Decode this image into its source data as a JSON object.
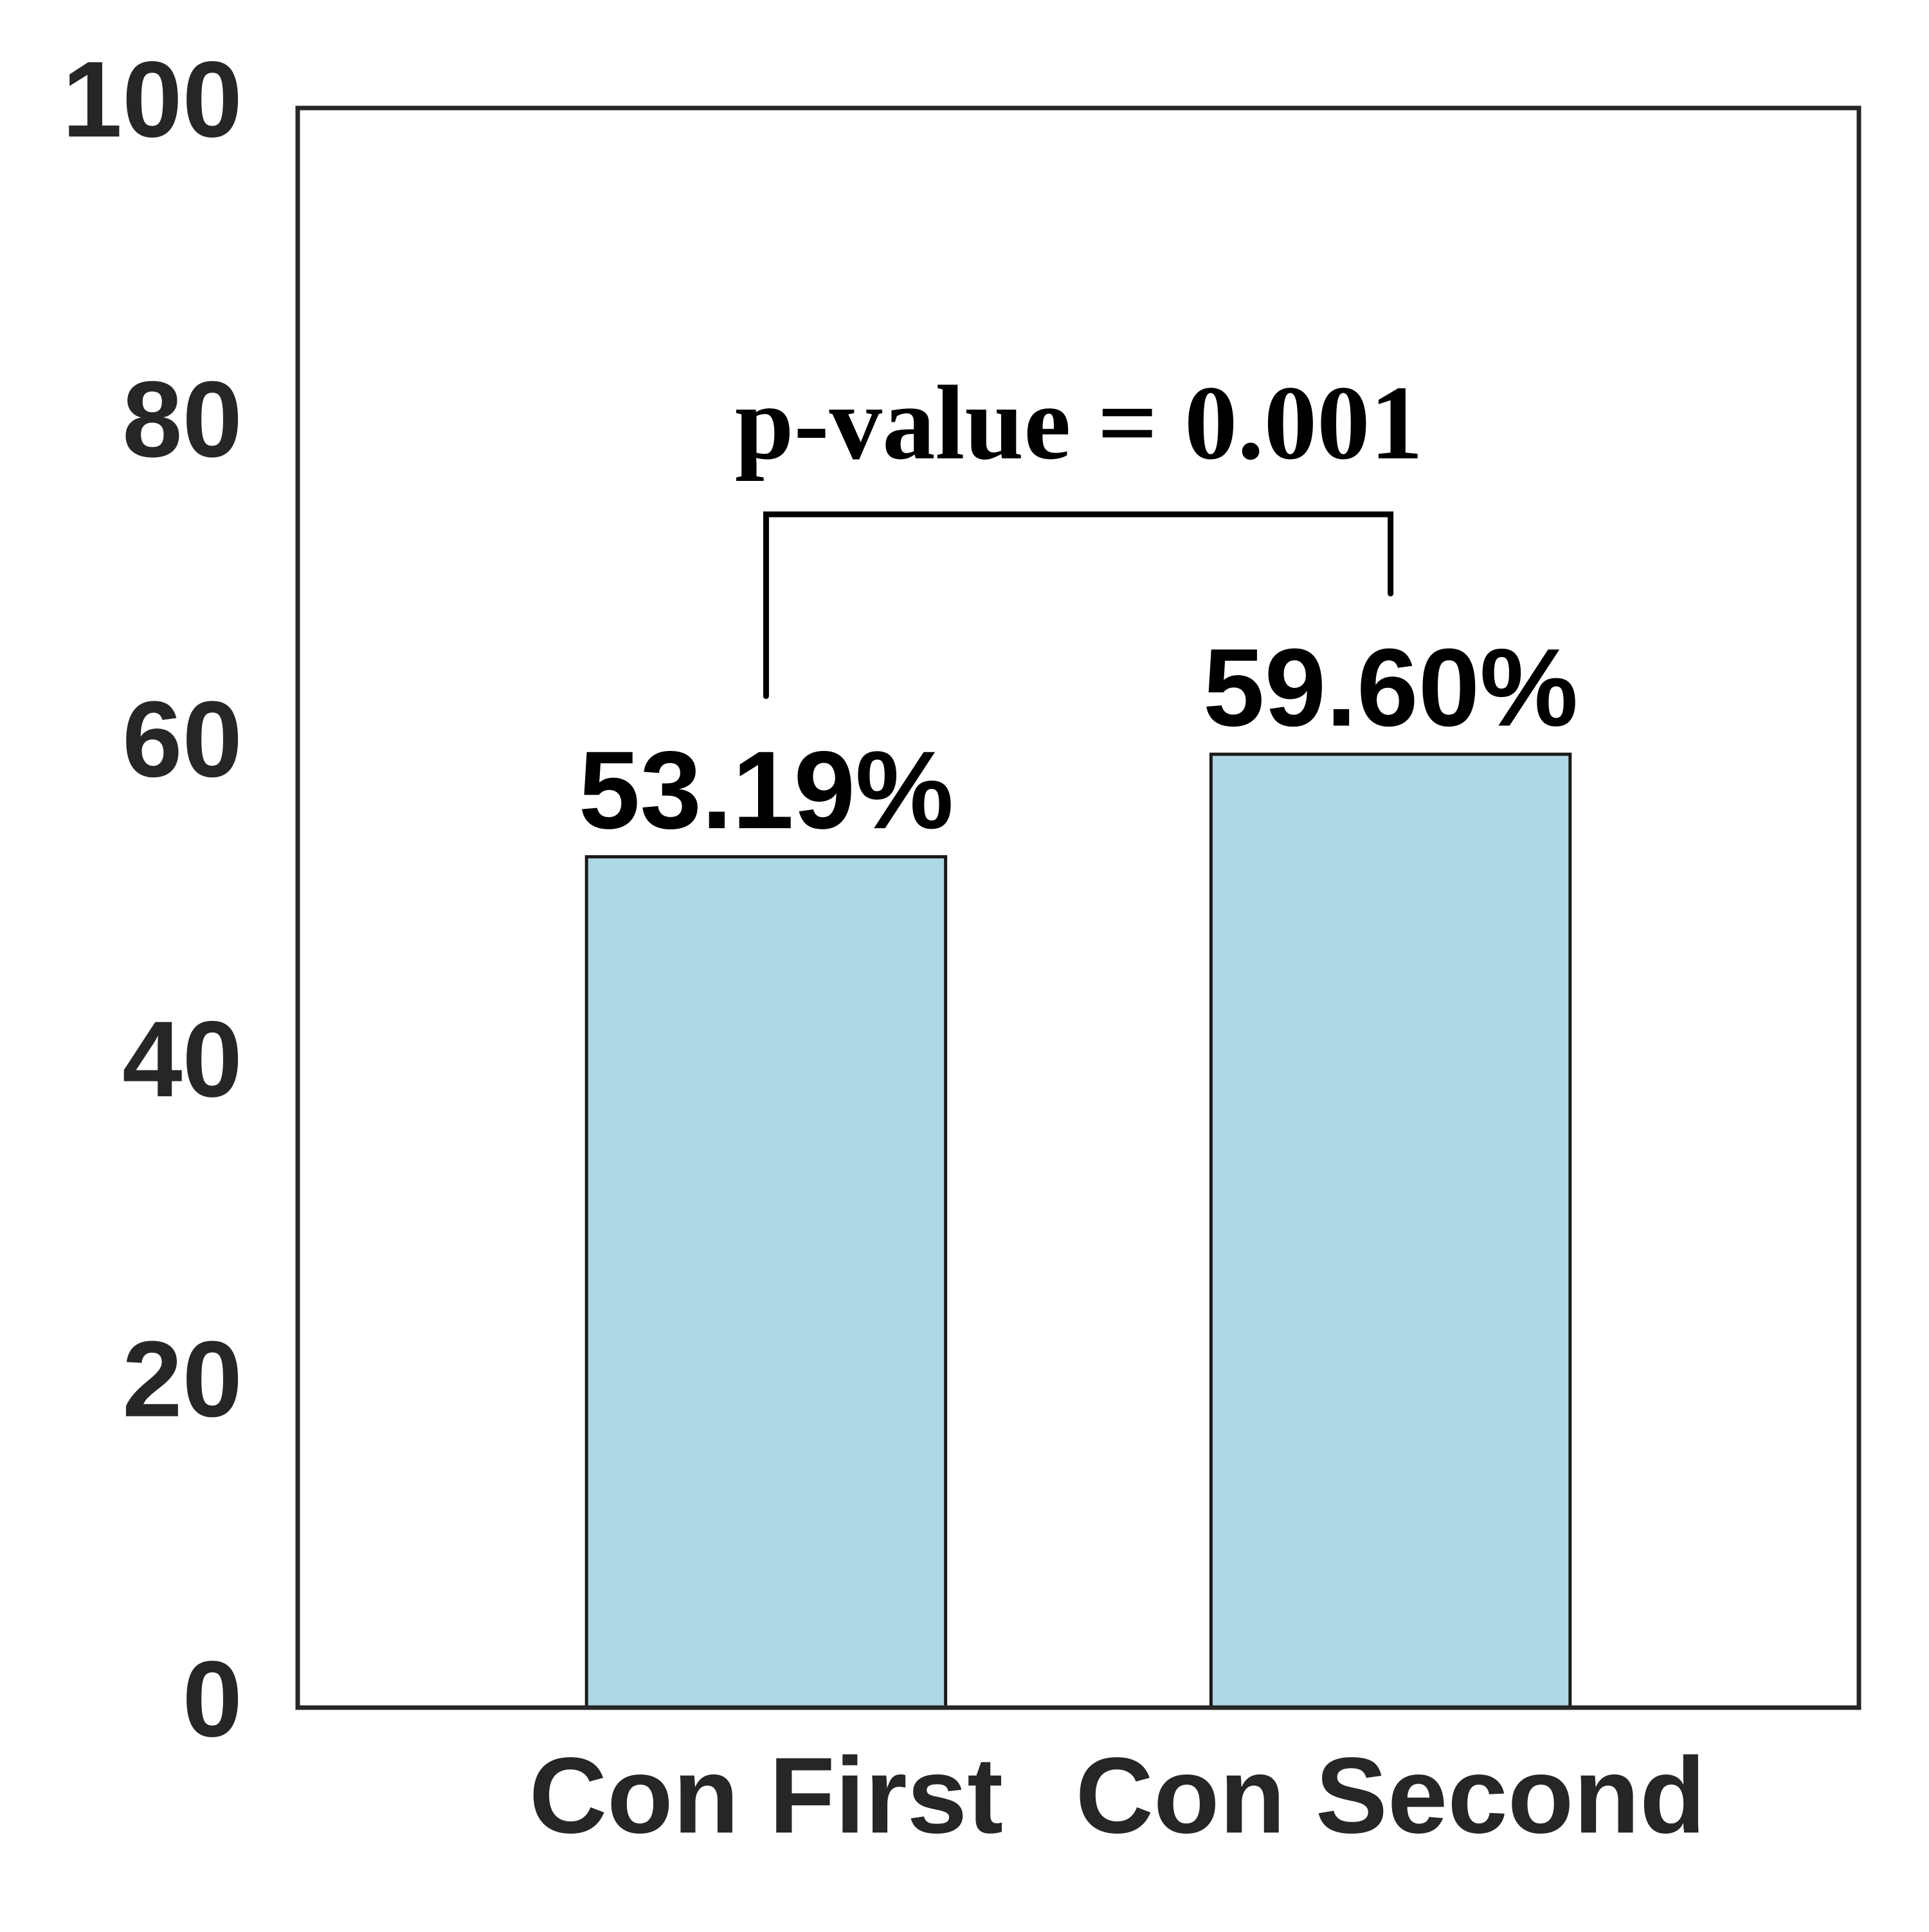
{
  "chart_data": {
    "type": "bar",
    "categories": [
      "Con First",
      "Con Second"
    ],
    "values": [
      53.19,
      59.6
    ],
    "value_labels": [
      "53.19%",
      "59.60%"
    ],
    "color": "#add8e6",
    "annotation": "p-value = 0.001",
    "ylim": [
      0,
      100
    ],
    "yticks": [
      0,
      20,
      40,
      60,
      80,
      100
    ],
    "grid": false
  }
}
